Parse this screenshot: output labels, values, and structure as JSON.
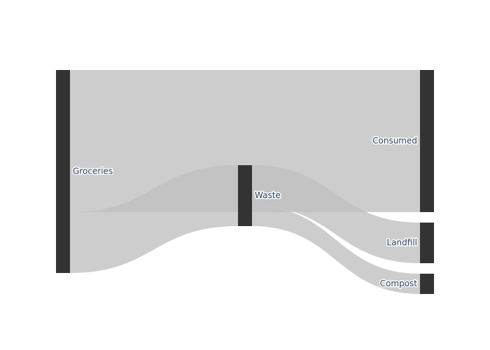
{
  "chart_data": {
    "type": "sankey",
    "title": "",
    "nodes": [
      {
        "id": "groceries",
        "label": "Groceries",
        "column": 0
      },
      {
        "id": "waste",
        "label": "Waste",
        "column": 1
      },
      {
        "id": "consumed",
        "label": "Consumed",
        "column": 2
      },
      {
        "id": "landfill",
        "label": "Landfill",
        "column": 2
      },
      {
        "id": "compost",
        "label": "Compost",
        "column": 2
      }
    ],
    "links": [
      {
        "source": "groceries",
        "target": "consumed",
        "value": 70
      },
      {
        "source": "groceries",
        "target": "waste",
        "value": 30
      },
      {
        "source": "waste",
        "target": "landfill",
        "value": 20
      },
      {
        "source": "waste",
        "target": "compost",
        "value": 10
      }
    ],
    "colors": {
      "node": "#333333",
      "link": "#cccccc",
      "link_highlight": "#a6a6a6"
    }
  }
}
